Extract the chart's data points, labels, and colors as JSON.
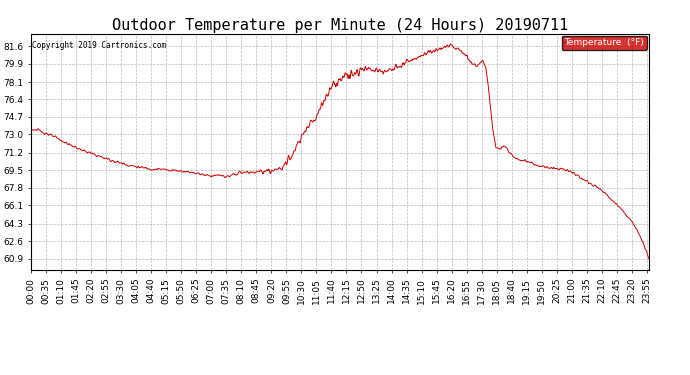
{
  "title": "Outdoor Temperature per Minute (24 Hours) 20190711",
  "copyright_text": "Copyright 2019 Cartronics.com",
  "legend_label": "Temperature  (°F)",
  "line_color": "#cc0000",
  "background_color": "#ffffff",
  "plot_bg_color": "#ffffff",
  "grid_color": "#aaaaaa",
  "title_fontsize": 11,
  "tick_fontsize": 6.5,
  "ylabel_ticks": [
    60.9,
    62.6,
    64.3,
    66.1,
    67.8,
    69.5,
    71.2,
    73.0,
    74.7,
    76.4,
    78.1,
    79.9,
    81.6
  ],
  "ylim": [
    59.8,
    82.8
  ],
  "legend_bg": "#cc0000",
  "legend_text_color": "#ffffff",
  "curve_points_x": [
    0,
    30,
    90,
    150,
    210,
    270,
    300,
    360,
    390,
    420,
    440,
    460,
    480,
    510,
    550,
    580,
    600,
    620,
    640,
    660,
    670,
    680,
    690,
    700,
    710,
    720,
    730,
    750,
    770,
    790,
    810,
    850,
    900,
    950,
    980,
    1010,
    1040,
    1060,
    1080,
    1100,
    1120,
    1140,
    1160,
    1180,
    1200,
    1220,
    1250,
    1280,
    1320,
    1380,
    1420,
    1439
  ],
  "curve_points_y": [
    73.5,
    73.2,
    72.0,
    71.0,
    70.2,
    69.7,
    69.6,
    69.4,
    69.2,
    69.0,
    69.0,
    68.9,
    69.2,
    69.3,
    69.4,
    69.5,
    70.5,
    72.0,
    73.5,
    74.5,
    75.2,
    76.0,
    76.8,
    77.5,
    78.0,
    78.4,
    78.8,
    79.1,
    79.4,
    79.5,
    79.2,
    79.5,
    80.5,
    81.3,
    81.6,
    80.8,
    79.8,
    79.2,
    72.5,
    71.8,
    71.0,
    70.5,
    70.3,
    70.0,
    69.8,
    69.7,
    69.5,
    68.8,
    67.8,
    65.5,
    63.0,
    60.9
  ]
}
